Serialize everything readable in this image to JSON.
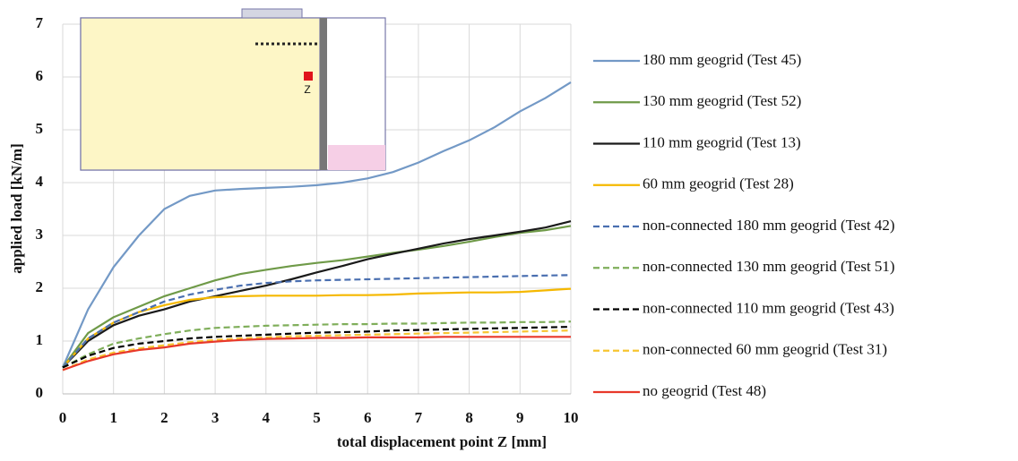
{
  "chart_data": {
    "type": "line",
    "x_label": "total displacement point Z [mm]",
    "y_label": "applied load [kN/m]",
    "annotations": [
      "Z"
    ],
    "x": [
      0,
      0.5,
      1,
      1.5,
      2,
      2.5,
      3,
      3.5,
      4,
      4.5,
      5,
      5.5,
      6,
      6.5,
      7,
      7.5,
      8,
      8.5,
      9,
      9.5,
      10
    ],
    "xlim": [
      0,
      10
    ],
    "xticks": [
      0,
      1,
      2,
      3,
      4,
      5,
      6,
      7,
      8,
      9,
      10
    ],
    "ylim": [
      0,
      7
    ],
    "yticks": [
      0,
      1,
      2,
      3,
      4,
      5,
      6,
      7
    ],
    "grid": true,
    "series": [
      {
        "name": "180 mm geogrid (Test 45)",
        "color": "#7399c6",
        "dashed": false,
        "values": [
          0.5,
          1.6,
          2.4,
          3.0,
          3.5,
          3.75,
          3.85,
          3.88,
          3.9,
          3.92,
          3.95,
          4.0,
          4.08,
          4.2,
          4.38,
          4.6,
          4.8,
          5.05,
          5.35,
          5.6,
          5.9
        ]
      },
      {
        "name": "130 mm geogrid (Test 52)",
        "color": "#6f9a48",
        "dashed": false,
        "values": [
          0.5,
          1.15,
          1.45,
          1.65,
          1.85,
          2.0,
          2.15,
          2.27,
          2.35,
          2.42,
          2.48,
          2.53,
          2.6,
          2.67,
          2.73,
          2.8,
          2.88,
          2.97,
          3.05,
          3.1,
          3.18
        ]
      },
      {
        "name": "110 mm geogrid (Test 13)",
        "color": "#1a1a1a",
        "dashed": false,
        "values": [
          0.5,
          1.0,
          1.3,
          1.48,
          1.6,
          1.75,
          1.85,
          1.95,
          2.05,
          2.17,
          2.3,
          2.42,
          2.55,
          2.65,
          2.75,
          2.85,
          2.93,
          3.0,
          3.07,
          3.15,
          3.27
        ]
      },
      {
        "name": "60 mm geogrid (Test 28)",
        "color": "#f5b800",
        "dashed": false,
        "values": [
          0.5,
          1.05,
          1.35,
          1.55,
          1.68,
          1.78,
          1.83,
          1.85,
          1.86,
          1.86,
          1.86,
          1.87,
          1.87,
          1.88,
          1.9,
          1.91,
          1.92,
          1.92,
          1.93,
          1.96,
          1.99
        ]
      },
      {
        "name": "non-connected 180 mm geogrid (Test 42)",
        "color": "#4a6fb0",
        "dashed": true,
        "values": [
          0.5,
          1.05,
          1.35,
          1.55,
          1.75,
          1.88,
          1.97,
          2.05,
          2.1,
          2.13,
          2.15,
          2.16,
          2.17,
          2.18,
          2.19,
          2.2,
          2.21,
          2.22,
          2.23,
          2.24,
          2.25
        ]
      },
      {
        "name": "non-connected 130 mm geogrid (Test 51)",
        "color": "#7fae5a",
        "dashed": true,
        "values": [
          0.5,
          0.75,
          0.95,
          1.05,
          1.13,
          1.2,
          1.25,
          1.27,
          1.29,
          1.3,
          1.31,
          1.32,
          1.32,
          1.33,
          1.33,
          1.34,
          1.35,
          1.35,
          1.36,
          1.36,
          1.37
        ]
      },
      {
        "name": "non-connected 110 mm geogrid (Test 43)",
        "color": "#000000",
        "dashed": true,
        "values": [
          0.5,
          0.72,
          0.87,
          0.95,
          1.0,
          1.05,
          1.08,
          1.1,
          1.12,
          1.14,
          1.16,
          1.17,
          1.18,
          1.2,
          1.21,
          1.22,
          1.23,
          1.24,
          1.25,
          1.26,
          1.27
        ]
      },
      {
        "name": "non-connected 60 mm geogrid (Test 31)",
        "color": "#f7c531",
        "dashed": true,
        "values": [
          0.45,
          0.65,
          0.78,
          0.86,
          0.92,
          0.98,
          1.02,
          1.05,
          1.07,
          1.09,
          1.1,
          1.11,
          1.12,
          1.13,
          1.14,
          1.15,
          1.16,
          1.17,
          1.18,
          1.19,
          1.2
        ]
      },
      {
        "name": "no geogrid (Test 48)",
        "color": "#e8382a",
        "dashed": false,
        "values": [
          0.45,
          0.62,
          0.75,
          0.83,
          0.88,
          0.95,
          0.99,
          1.02,
          1.04,
          1.05,
          1.06,
          1.06,
          1.07,
          1.07,
          1.07,
          1.08,
          1.08,
          1.08,
          1.08,
          1.08,
          1.08
        ]
      }
    ]
  }
}
